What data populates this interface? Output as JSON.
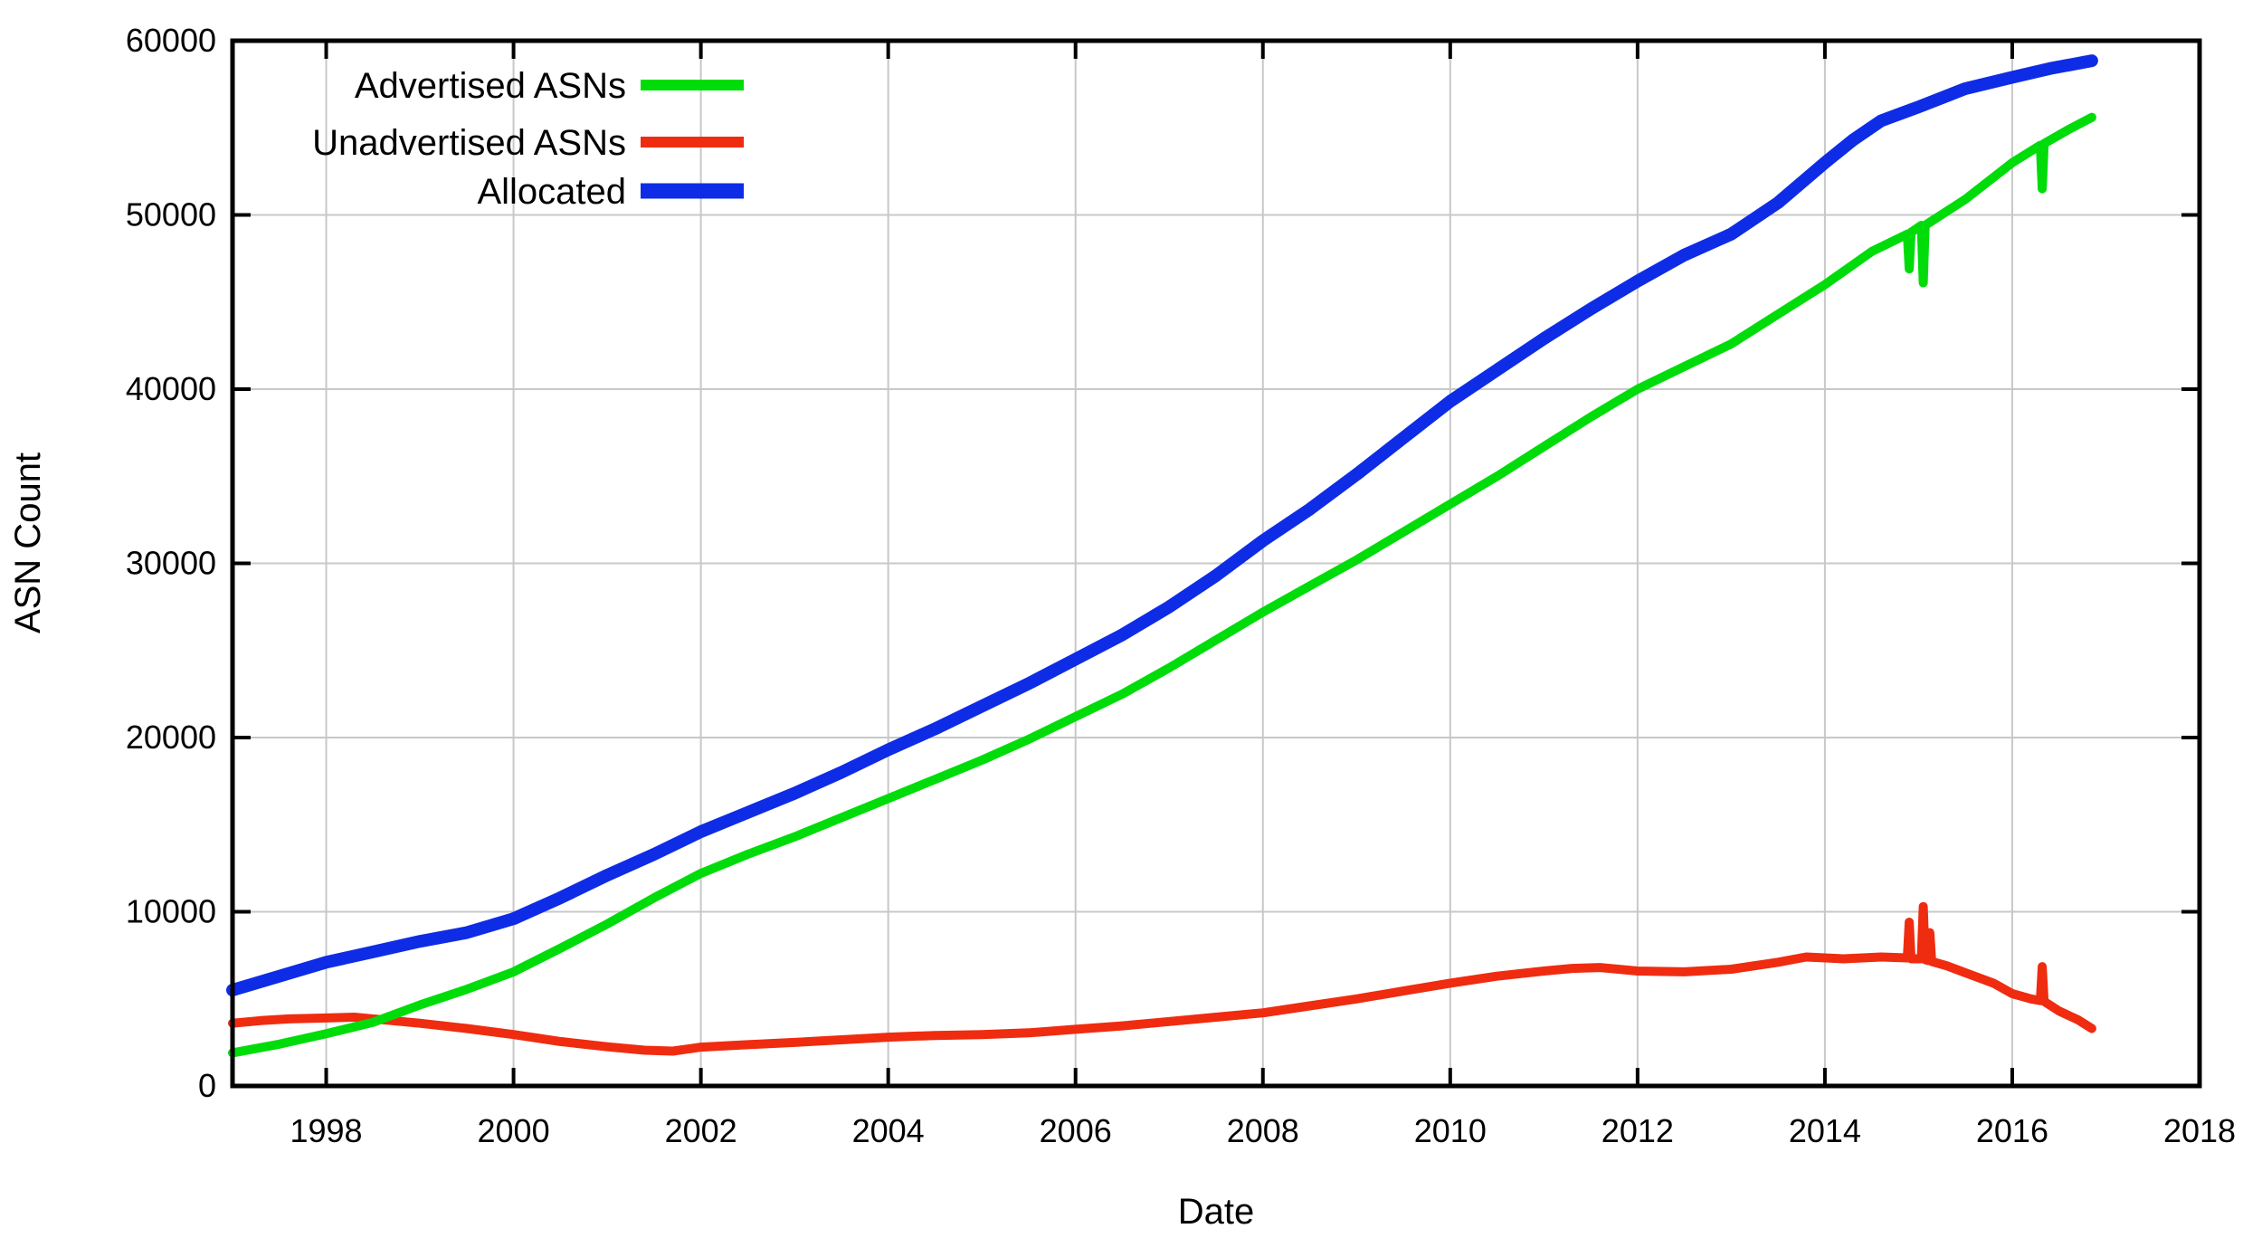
{
  "chart_data": {
    "type": "line",
    "title": "",
    "xlabel": "Date",
    "ylabel": "ASN Count",
    "xlim": [
      1997,
      2018
    ],
    "ylim": [
      0,
      60000
    ],
    "x_ticks": [
      1998,
      2000,
      2002,
      2004,
      2006,
      2008,
      2010,
      2012,
      2014,
      2016,
      2018
    ],
    "y_ticks": [
      0,
      10000,
      20000,
      30000,
      40000,
      50000,
      60000
    ],
    "grid": true,
    "grid_color": "#c8c8c8",
    "axis_color": "#000000",
    "legend_position": "top-left-inside",
    "series": [
      {
        "name": "Advertised ASNs",
        "color": "#00dc0a",
        "points": [
          [
            1997,
            1900
          ],
          [
            1997.5,
            2400
          ],
          [
            1998,
            3000
          ],
          [
            1998.5,
            3650
          ],
          [
            1999,
            4650
          ],
          [
            1999.5,
            5550
          ],
          [
            2000,
            6550
          ],
          [
            2000.5,
            7900
          ],
          [
            2001,
            9300
          ],
          [
            2001.5,
            10800
          ],
          [
            2002,
            12200
          ],
          [
            2002.5,
            13300
          ],
          [
            2003,
            14300
          ],
          [
            2003.5,
            15400
          ],
          [
            2004,
            16500
          ],
          [
            2004.5,
            17600
          ],
          [
            2005,
            18700
          ],
          [
            2005.5,
            19900
          ],
          [
            2006,
            21200
          ],
          [
            2006.5,
            22500
          ],
          [
            2007,
            24000
          ],
          [
            2007.5,
            25600
          ],
          [
            2008,
            27200
          ],
          [
            2008.5,
            28700
          ],
          [
            2009,
            30200
          ],
          [
            2009.5,
            31800
          ],
          [
            2010,
            33400
          ],
          [
            2010.5,
            35000
          ],
          [
            2011,
            36700
          ],
          [
            2011.5,
            38400
          ],
          [
            2012,
            40000
          ],
          [
            2012.5,
            41300
          ],
          [
            2013,
            42600
          ],
          [
            2013.5,
            44300
          ],
          [
            2014,
            46000
          ],
          [
            2014.5,
            47900
          ],
          [
            2014.88,
            48900
          ],
          [
            2014.9,
            46900
          ],
          [
            2014.92,
            49000
          ],
          [
            2015.03,
            49400
          ],
          [
            2015.05,
            46100
          ],
          [
            2015.07,
            49400
          ],
          [
            2015.5,
            50900
          ],
          [
            2016,
            53000
          ],
          [
            2016.3,
            54000
          ],
          [
            2016.32,
            51500
          ],
          [
            2016.34,
            54100
          ],
          [
            2016.6,
            54900
          ],
          [
            2016.85,
            55600
          ]
        ]
      },
      {
        "name": "Unadvertised ASNs",
        "color": "#ef2c10",
        "points": [
          [
            1997,
            3600
          ],
          [
            1997.3,
            3750
          ],
          [
            1997.6,
            3850
          ],
          [
            1998,
            3900
          ],
          [
            1998.3,
            3950
          ],
          [
            1998.6,
            3800
          ],
          [
            1999,
            3600
          ],
          [
            1999.5,
            3300
          ],
          [
            2000,
            2950
          ],
          [
            2000.5,
            2550
          ],
          [
            2001,
            2250
          ],
          [
            2001.4,
            2050
          ],
          [
            2001.7,
            2000
          ],
          [
            2002,
            2230
          ],
          [
            2002.5,
            2370
          ],
          [
            2003,
            2500
          ],
          [
            2003.5,
            2650
          ],
          [
            2004,
            2800
          ],
          [
            2004.5,
            2900
          ],
          [
            2005,
            2950
          ],
          [
            2005.5,
            3050
          ],
          [
            2006,
            3250
          ],
          [
            2006.5,
            3450
          ],
          [
            2007,
            3700
          ],
          [
            2007.5,
            3950
          ],
          [
            2008,
            4200
          ],
          [
            2008.5,
            4600
          ],
          [
            2009,
            5000
          ],
          [
            2009.5,
            5450
          ],
          [
            2010,
            5900
          ],
          [
            2010.5,
            6300
          ],
          [
            2011,
            6600
          ],
          [
            2011.3,
            6750
          ],
          [
            2011.6,
            6800
          ],
          [
            2012,
            6600
          ],
          [
            2012.5,
            6550
          ],
          [
            2013,
            6700
          ],
          [
            2013.5,
            7100
          ],
          [
            2013.8,
            7400
          ],
          [
            2014.2,
            7300
          ],
          [
            2014.6,
            7400
          ],
          [
            2014.88,
            7350
          ],
          [
            2014.9,
            9400
          ],
          [
            2014.92,
            7300
          ],
          [
            2015.03,
            7300
          ],
          [
            2015.05,
            10300
          ],
          [
            2015.07,
            7250
          ],
          [
            2015.1,
            7200
          ],
          [
            2015.12,
            8800
          ],
          [
            2015.14,
            7150
          ],
          [
            2015.3,
            6900
          ],
          [
            2015.5,
            6500
          ],
          [
            2015.8,
            5900
          ],
          [
            2016,
            5300
          ],
          [
            2016.2,
            5000
          ],
          [
            2016.3,
            4900
          ],
          [
            2016.32,
            6850
          ],
          [
            2016.34,
            4850
          ],
          [
            2016.5,
            4300
          ],
          [
            2016.7,
            3800
          ],
          [
            2016.85,
            3300
          ]
        ]
      },
      {
        "name": "Allocated",
        "color": "#0e2ce6",
        "points": [
          [
            1997,
            5500
          ],
          [
            1997.5,
            6300
          ],
          [
            1998,
            7100
          ],
          [
            1998.5,
            7700
          ],
          [
            1999,
            8300
          ],
          [
            1999.5,
            8800
          ],
          [
            2000,
            9600
          ],
          [
            2000.5,
            10800
          ],
          [
            2001,
            12100
          ],
          [
            2001.5,
            13300
          ],
          [
            2002,
            14600
          ],
          [
            2002.5,
            15700
          ],
          [
            2003,
            16800
          ],
          [
            2003.5,
            18000
          ],
          [
            2004,
            19300
          ],
          [
            2004.5,
            20500
          ],
          [
            2005,
            21800
          ],
          [
            2005.5,
            23100
          ],
          [
            2006,
            24500
          ],
          [
            2006.5,
            25900
          ],
          [
            2007,
            27500
          ],
          [
            2007.5,
            29300
          ],
          [
            2008,
            31300
          ],
          [
            2008.5,
            33100
          ],
          [
            2009,
            35100
          ],
          [
            2009.5,
            37200
          ],
          [
            2010,
            39300
          ],
          [
            2010.5,
            41100
          ],
          [
            2011,
            42900
          ],
          [
            2011.5,
            44600
          ],
          [
            2012,
            46200
          ],
          [
            2012.5,
            47700
          ],
          [
            2013,
            48900
          ],
          [
            2013.5,
            50700
          ],
          [
            2014,
            53000
          ],
          [
            2014.3,
            54300
          ],
          [
            2014.6,
            55400
          ],
          [
            2014.8,
            55800
          ],
          [
            2015,
            56200
          ],
          [
            2015.5,
            57250
          ],
          [
            2016,
            57900
          ],
          [
            2016.4,
            58400
          ],
          [
            2016.85,
            58850
          ]
        ]
      }
    ],
    "legend_order": [
      "Advertised ASNs",
      "Unadvertised ASNs",
      "Allocated"
    ]
  }
}
